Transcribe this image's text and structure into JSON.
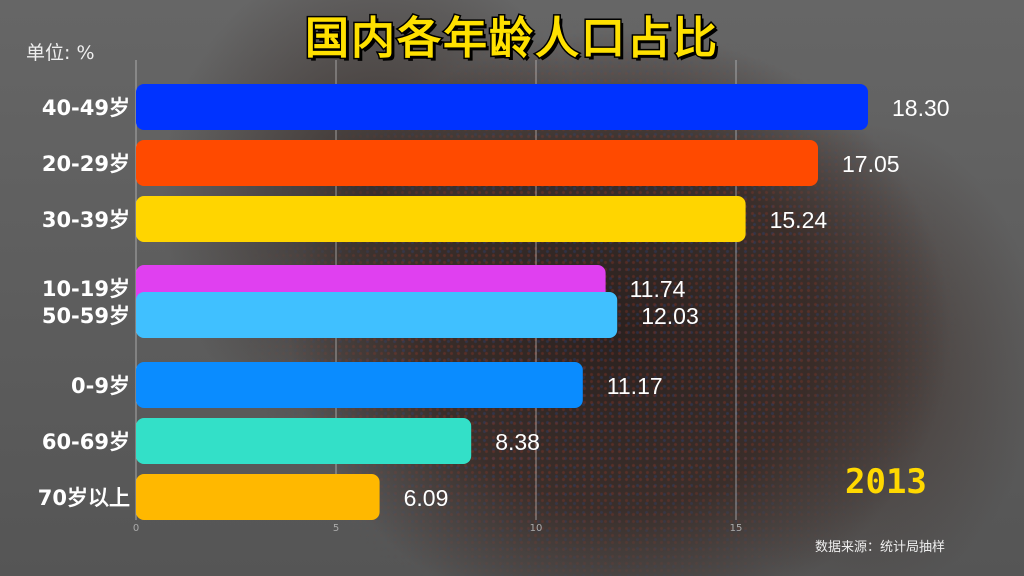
{
  "chart_data": {
    "type": "bar",
    "orientation": "horizontal",
    "title": "国内各年龄人口占比",
    "unit_label": "单位: %",
    "year": "2013",
    "source": "数据来源：统计局抽样",
    "xlim": [
      0,
      18.3
    ],
    "xticks": [
      "0",
      "5",
      "10",
      "15"
    ],
    "grid": true,
    "categories": [
      "40-49岁",
      "20-29岁",
      "30-39岁",
      "10-19岁",
      "50-59岁",
      "0-9岁",
      "60-69岁",
      "70岁以上"
    ],
    "values": [
      18.3,
      17.05,
      15.24,
      11.74,
      12.03,
      11.17,
      8.38,
      6.09
    ],
    "value_labels": [
      "18.30",
      "17.05",
      "15.24",
      "11.74",
      "12.03",
      "11.17",
      "8.38",
      "6.09"
    ],
    "colors": [
      "#0033ff",
      "#ff4a00",
      "#ffd500",
      "#e040f0",
      "#40c0ff",
      "#0a8cff",
      "#33e0c8",
      "#ffb800"
    ]
  }
}
